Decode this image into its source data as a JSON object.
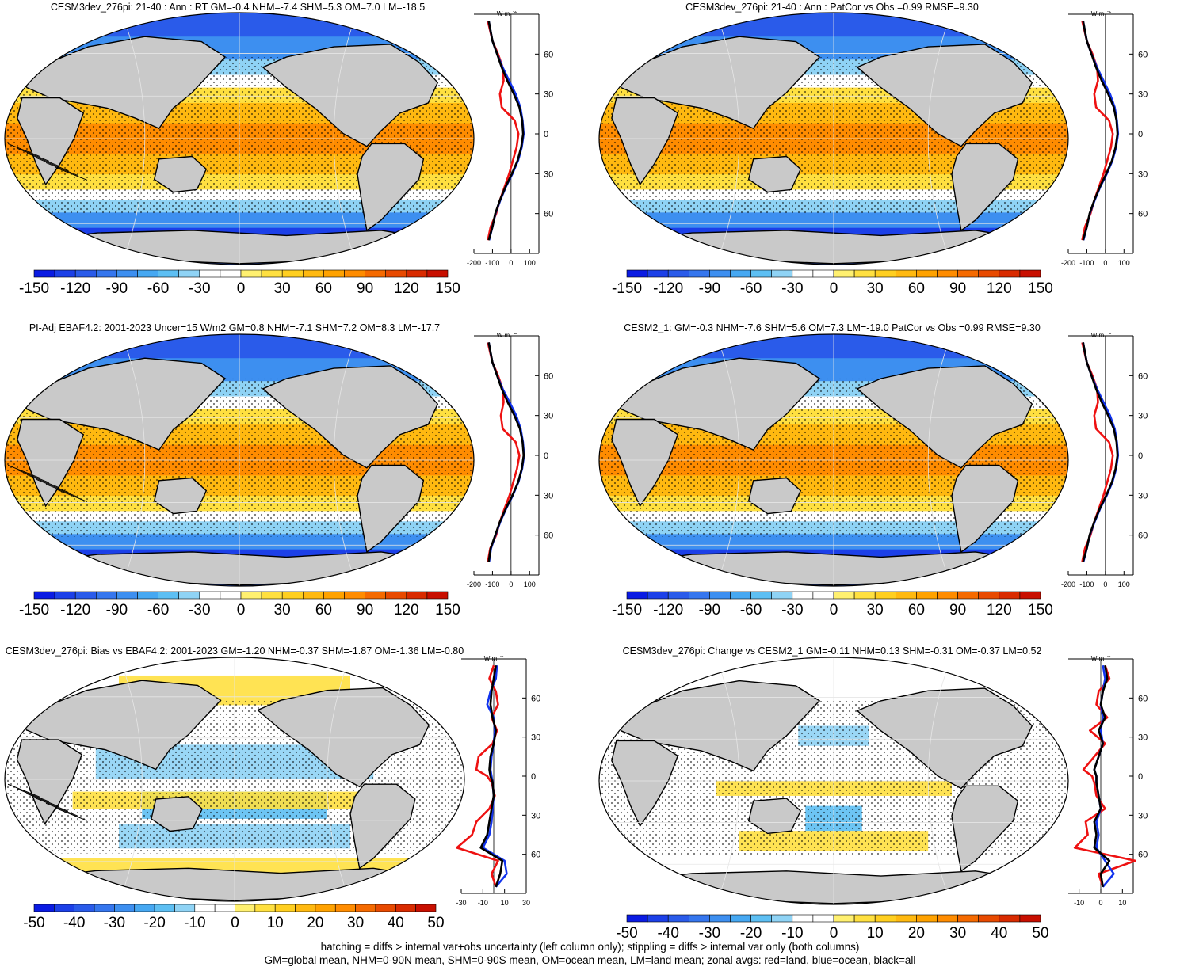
{
  "panels": [
    {
      "title": "CESM3dev_276pi: 21-40 : Ann : RT GM=-0.4 NHM=-7.4 SHM=5.3 OM=7.0 LM=-18.5",
      "kind": "full",
      "zonal_unit": "W m",
      "zonal_unit_sup": "-2",
      "lat_labels": [
        "60N",
        "30N",
        "0",
        "30S",
        "60S"
      ],
      "x_ticks": [
        "-200",
        "-100",
        "0",
        "100"
      ],
      "cbar_labels": [
        "-150",
        "-120",
        "-90",
        "-60",
        "-30",
        "0",
        "30",
        "60",
        "90",
        "120",
        "150"
      ],
      "hatching": true
    },
    {
      "title": "CESM3dev_276pi: 21-40 : Ann : PatCor vs Obs =0.99 RMSE=9.30",
      "kind": "full",
      "zonal_unit": "W m",
      "zonal_unit_sup": "-2",
      "lat_labels": [
        "60N",
        "30N",
        "0",
        "30S",
        "60S"
      ],
      "x_ticks": [
        "-200",
        "-100",
        "0",
        "100"
      ],
      "cbar_labels": [
        "-150",
        "-120",
        "-90",
        "-60",
        "-30",
        "0",
        "30",
        "60",
        "90",
        "120",
        "150"
      ],
      "hatching": false
    },
    {
      "title": "PI-Adj EBAF4.2: 2001-2023 Uncer=15 W/m2 GM=0.8 NHM=-7.1 SHM=7.2 OM=8.3 LM=-17.7",
      "kind": "full",
      "zonal_unit": "W m",
      "zonal_unit_sup": "-2",
      "lat_labels": [
        "60N",
        "30N",
        "0",
        "30S",
        "60S"
      ],
      "x_ticks": [
        "-200",
        "-100",
        "0",
        "100"
      ],
      "cbar_labels": [
        "-150",
        "-120",
        "-90",
        "-60",
        "-30",
        "0",
        "30",
        "60",
        "90",
        "120",
        "150"
      ],
      "hatching": true
    },
    {
      "title": "CESM2_1: GM=-0.3 NHM=-7.6 SHM=5.6 OM=7.3 LM=-19.0 PatCor vs Obs =0.99 RMSE=9.30",
      "kind": "full",
      "zonal_unit": "W m",
      "zonal_unit_sup": "-2",
      "lat_labels": [
        "60N",
        "30N",
        "0",
        "30S",
        "60S"
      ],
      "x_ticks": [
        "-200",
        "-100",
        "0",
        "100"
      ],
      "cbar_labels": [
        "-150",
        "-120",
        "-90",
        "-60",
        "-30",
        "0",
        "30",
        "60",
        "90",
        "120",
        "150"
      ],
      "hatching": false
    },
    {
      "title": "CESM3dev_276pi: Bias vs EBAF4.2: 2001-2023 GM=-1.20 NHM=-0.37 SHM=-1.87 OM=-1.36 LM=-0.80",
      "kind": "bias",
      "zonal_unit": "W m",
      "zonal_unit_sup": "-2",
      "lat_labels": [
        "60N",
        "30N",
        "0",
        "30S",
        "60S"
      ],
      "x_ticks": [
        "-30",
        "-10",
        "10",
        "30"
      ],
      "cbar_labels": [
        "-50",
        "-40",
        "-30",
        "-20",
        "-10",
        "0",
        "10",
        "20",
        "30",
        "40",
        "50"
      ],
      "hatching": true
    },
    {
      "title": "CESM3dev_276pi: Change vs CESM2_1 GM=-0.11 NHM=0.13 SHM=-0.31 OM=-0.37 LM=0.52",
      "kind": "change",
      "zonal_unit": "W m",
      "zonal_unit_sup": "-2",
      "lat_labels": [
        "60N",
        "30N",
        "0",
        "30S",
        "60S"
      ],
      "x_ticks": [
        "-10",
        "0",
        "10"
      ],
      "cbar_labels": [
        "-50",
        "-40",
        "-30",
        "-20",
        "-10",
        "0",
        "10",
        "20",
        "30",
        "40",
        "50"
      ],
      "hatching": false
    }
  ],
  "footer": {
    "line1": "hatching = diffs > internal var+obs uncertainty (left column only); stippling = diffs > internal var only (both columns)",
    "line2": "GM=global mean, NHM=0-90N mean, SHM=0-90S mean, OM=ocean mean, LM=land mean; zonal avgs: red=land, blue=ocean, black=all"
  },
  "colors": {
    "land": "#c9c9c9",
    "red": "#ee1111",
    "blue": "#1133ee",
    "black": "#000000",
    "full_scale": [
      "#0a1be3",
      "#1c40e8",
      "#2a5bea",
      "#3576ee",
      "#3d8ff0",
      "#46a8f2",
      "#5dbff3",
      "#8fd3f5",
      "#ffffff",
      "#ffffff",
      "#fff070",
      "#ffe040",
      "#ffcf20",
      "#ffb910",
      "#ffa200",
      "#ff8c00",
      "#f56a00",
      "#e84a00",
      "#d92b00",
      "#c80f00"
    ],
    "diff_scale": [
      "#0a1be3",
      "#1c40e8",
      "#2a5bea",
      "#3576ee",
      "#3d8ff0",
      "#46a8f2",
      "#5dbff3",
      "#8fd3f5",
      "#ffffff",
      "#ffffff",
      "#fff070",
      "#ffe040",
      "#ffcf20",
      "#ffb910",
      "#ffa200",
      "#ff8c00",
      "#f56a00",
      "#e84a00",
      "#d92b00",
      "#c80f00"
    ]
  },
  "chart_data": [
    {
      "type": "heatmap",
      "title": "CESM3dev_276pi: 21-40 : Ann : RT GM=-0.4 NHM=-7.4 SHM=5.3 OM=7.0 LM=-18.5",
      "zonal_lat": [
        85,
        70,
        60,
        50,
        40,
        30,
        20,
        10,
        0,
        -10,
        -20,
        -30,
        -40,
        -50,
        -60,
        -70,
        -80
      ],
      "zonal_all": [
        -120,
        -100,
        -75,
        -50,
        -20,
        15,
        45,
        60,
        65,
        55,
        35,
        5,
        -30,
        -60,
        -85,
        -100,
        -120
      ],
      "zonal_land": [
        -125,
        -100,
        -70,
        -45,
        -40,
        -60,
        -50,
        20,
        40,
        30,
        10,
        -10,
        -35,
        -60,
        -80,
        -110,
        -125
      ],
      "zonal_ocean": [
        -120,
        -100,
        -75,
        -45,
        -10,
        25,
        50,
        62,
        68,
        58,
        38,
        8,
        -28,
        -58,
        -84,
        -100,
        -118
      ],
      "xlim": [
        -200,
        150
      ],
      "colorbar_range": [
        -150,
        150
      ]
    },
    {
      "type": "heatmap",
      "title": "CESM3dev_276pi: 21-40 : Ann : PatCor vs Obs =0.99 RMSE=9.30",
      "zonal_lat": [
        85,
        70,
        60,
        50,
        40,
        30,
        20,
        10,
        0,
        -10,
        -20,
        -30,
        -40,
        -50,
        -60,
        -70,
        -80
      ],
      "zonal_all": [
        -120,
        -100,
        -75,
        -50,
        -20,
        15,
        45,
        60,
        65,
        55,
        35,
        5,
        -30,
        -60,
        -85,
        -100,
        -120
      ],
      "zonal_land": [
        -125,
        -100,
        -70,
        -45,
        -40,
        -60,
        -50,
        20,
        40,
        30,
        10,
        -10,
        -35,
        -60,
        -80,
        -110,
        -125
      ],
      "zonal_ocean": [
        -120,
        -100,
        -75,
        -45,
        -10,
        25,
        50,
        62,
        68,
        58,
        38,
        8,
        -28,
        -58,
        -84,
        -100,
        -118
      ],
      "xlim": [
        -200,
        150
      ],
      "colorbar_range": [
        -150,
        150
      ]
    },
    {
      "type": "heatmap",
      "title": "PI-Adj EBAF4.2: 2001-2023 Uncer=15 W/m2 GM=0.8 NHM=-7.1 SHM=7.2 OM=8.3 LM=-17.7",
      "zonal_lat": [
        85,
        70,
        60,
        50,
        40,
        30,
        20,
        10,
        0,
        -10,
        -20,
        -30,
        -40,
        -50,
        -60,
        -70,
        -80
      ],
      "zonal_all": [
        -120,
        -100,
        -75,
        -50,
        -18,
        18,
        48,
        62,
        68,
        58,
        38,
        8,
        -28,
        -60,
        -85,
        -110,
        -120
      ],
      "zonal_land": [
        -125,
        -100,
        -70,
        -45,
        -40,
        -55,
        -45,
        25,
        45,
        32,
        12,
        -8,
        -35,
        -60,
        -80,
        -112,
        -125
      ],
      "zonal_ocean": [
        -120,
        -100,
        -75,
        -45,
        -8,
        28,
        52,
        64,
        70,
        60,
        40,
        10,
        -26,
        -58,
        -84,
        -108,
        -118
      ],
      "xlim": [
        -200,
        150
      ],
      "colorbar_range": [
        -150,
        150
      ]
    },
    {
      "type": "heatmap",
      "title": "CESM2_1: GM=-0.3 NHM=-7.6 SHM=5.6 OM=7.3 LM=-19.0 PatCor vs Obs =0.99 RMSE=9.30",
      "zonal_lat": [
        85,
        70,
        60,
        50,
        40,
        30,
        20,
        10,
        0,
        -10,
        -20,
        -30,
        -40,
        -50,
        -60,
        -70,
        -80
      ],
      "zonal_all": [
        -120,
        -100,
        -75,
        -50,
        -20,
        15,
        45,
        60,
        65,
        55,
        35,
        5,
        -30,
        -60,
        -85,
        -100,
        -120
      ],
      "zonal_land": [
        -125,
        -100,
        -70,
        -45,
        -40,
        -60,
        -50,
        20,
        40,
        30,
        10,
        -10,
        -35,
        -60,
        -80,
        -110,
        -125
      ],
      "zonal_ocean": [
        -120,
        -100,
        -75,
        -45,
        -10,
        25,
        50,
        62,
        68,
        58,
        38,
        8,
        -28,
        -58,
        -84,
        -100,
        -118
      ],
      "xlim": [
        -200,
        150
      ],
      "colorbar_range": [
        -150,
        150
      ]
    },
    {
      "type": "heatmap",
      "title": "CESM3dev_276pi: Bias vs EBAF4.2: 2001-2023 GM=-1.20 NHM=-0.37 SHM=-1.87 OM=-1.36 LM=-0.80",
      "zonal_lat": [
        85,
        75,
        65,
        55,
        45,
        35,
        25,
        15,
        5,
        0,
        -5,
        -15,
        -25,
        -35,
        -45,
        -55,
        -65,
        -75,
        -85
      ],
      "zonal_all": [
        2,
        0,
        -2,
        -3,
        -1,
        2,
        0,
        -3,
        -4,
        -3,
        -1,
        0,
        -2,
        -4,
        -6,
        -12,
        8,
        6,
        2
      ],
      "zonal_land": [
        0,
        -4,
        2,
        4,
        -2,
        3,
        -1,
        -14,
        -16,
        -6,
        -2,
        1,
        -4,
        -16,
        -20,
        -34,
        4,
        -2,
        2
      ],
      "zonal_ocean": [
        3,
        2,
        -3,
        -6,
        0,
        1,
        0,
        -2,
        -3,
        -2,
        -1,
        0,
        -1,
        -2,
        -4,
        -10,
        10,
        12,
        2
      ],
      "xlim": [
        -30,
        30
      ],
      "colorbar_range": [
        -50,
        50
      ]
    },
    {
      "type": "heatmap",
      "title": "CESM3dev_276pi: Change vs CESM2_1 GM=-0.11 NHM=0.13 SHM=-0.31 OM=-0.37 LM=0.52",
      "zonal_lat": [
        85,
        75,
        65,
        55,
        45,
        35,
        25,
        15,
        5,
        0,
        -5,
        -15,
        -25,
        -35,
        -45,
        -55,
        -65,
        -75,
        -85
      ],
      "zonal_all": [
        2,
        3,
        1,
        0,
        2,
        -1,
        1,
        -1,
        -3,
        -2,
        -2,
        -1,
        0,
        -3,
        -2,
        -3,
        4,
        0,
        1
      ],
      "zonal_land": [
        2,
        4,
        -1,
        -2,
        3,
        -5,
        2,
        -3,
        -8,
        -4,
        -3,
        -2,
        2,
        -7,
        -6,
        -12,
        16,
        -1,
        1
      ],
      "zonal_ocean": [
        1,
        2,
        1,
        0,
        1,
        0,
        1,
        -1,
        -3,
        -2,
        -2,
        -1,
        0,
        -2,
        -1,
        -2,
        2,
        6,
        1
      ],
      "xlim": [
        -15,
        15
      ],
      "colorbar_range": [
        -50,
        50
      ]
    }
  ]
}
